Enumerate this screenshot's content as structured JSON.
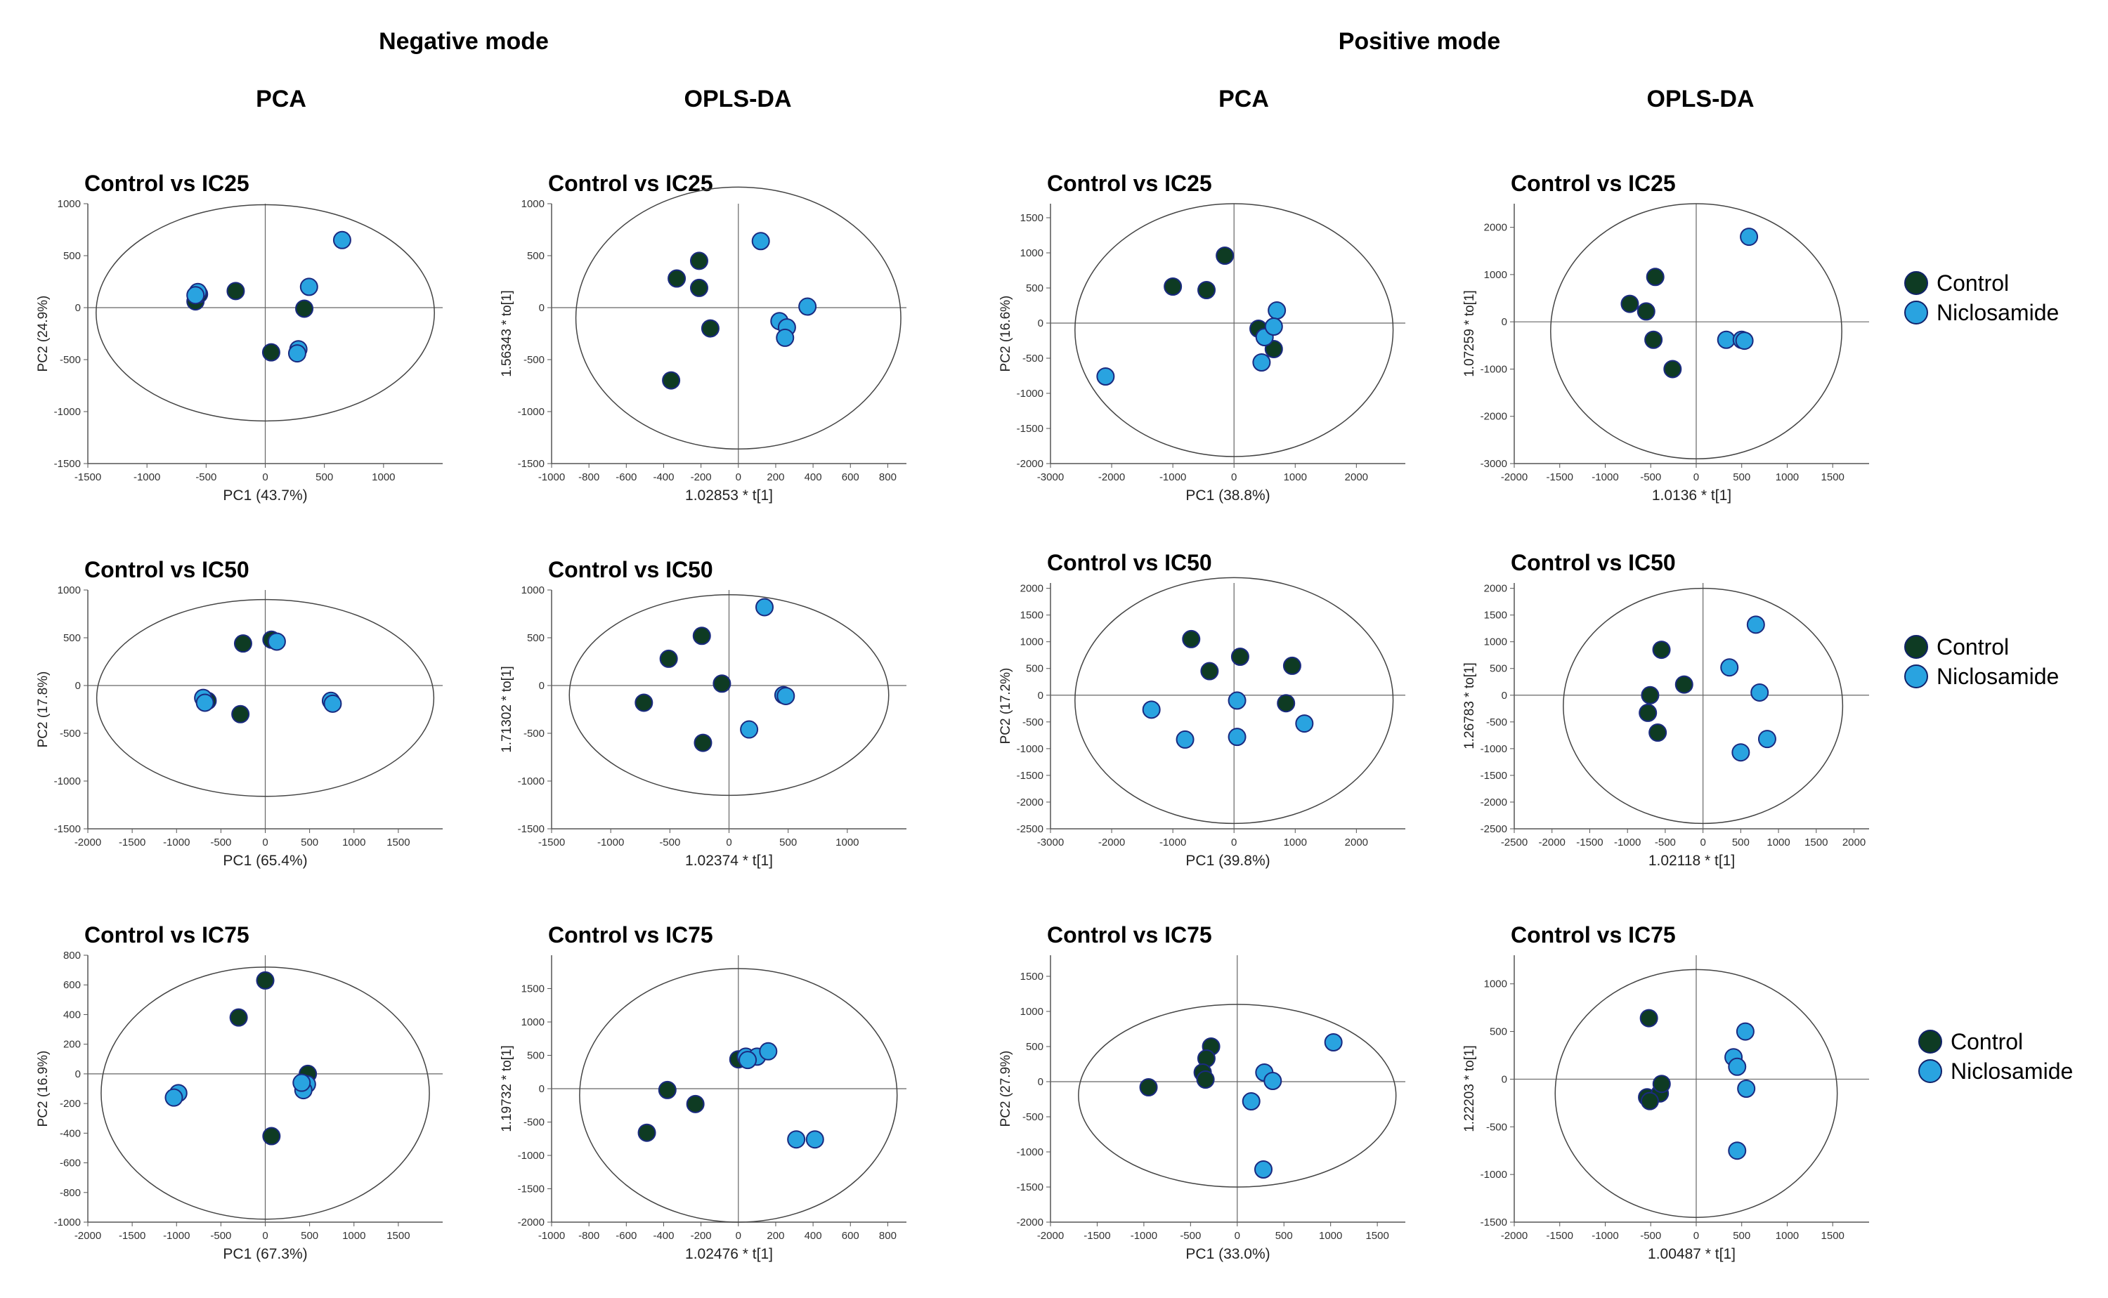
{
  "headers": {
    "negative": "Negative mode",
    "positive": "Positive mode"
  },
  "columns": {
    "pca": "PCA",
    "oplsda": "OPLS-DA"
  },
  "colors": {
    "control": "#0e3b23",
    "niclosamide": "#29a3e0",
    "marker_edge": "#1a2a80"
  },
  "legend": [
    {
      "label": "Control",
      "color": "#0e3b23"
    },
    {
      "label": "Niclosamide",
      "color": "#29a3e0"
    }
  ],
  "chart_data": [
    {
      "id": "neg-pca-ic25",
      "type": "scatter",
      "title": "Control vs IC25",
      "xlabel": "PC1 (43.7%)",
      "ylabel": "PC2 (24.9%)",
      "xlim": [
        -1500,
        1500
      ],
      "ylim": [
        -1500,
        1000
      ],
      "xticks": [
        -1500,
        -1000,
        -500,
        0,
        500,
        1000
      ],
      "yticks": [
        -1500,
        -1000,
        -500,
        0,
        500,
        1000
      ],
      "ellipse": {
        "cx": 0,
        "cy": -50,
        "rx": 1430,
        "ry": 1040
      },
      "series": [
        {
          "name": "Control",
          "points": [
            [
              -590,
              60
            ],
            [
              -560,
              130
            ],
            [
              -250,
              160
            ],
            [
              330,
              -10
            ],
            [
              50,
              -430
            ]
          ]
        },
        {
          "name": "Niclosamide",
          "points": [
            [
              -570,
              150
            ],
            [
              -590,
              120
            ],
            [
              650,
              650
            ],
            [
              370,
              200
            ],
            [
              280,
              -400
            ],
            [
              270,
              -440
            ]
          ]
        }
      ]
    },
    {
      "id": "neg-opls-ic25",
      "type": "scatter",
      "title": "Control vs IC25",
      "xlabel": "1.02853 * t[1]",
      "ylabel": "1.56343 * to[1]",
      "xlim": [
        -1000,
        900
      ],
      "ylim": [
        -1500,
        1000
      ],
      "xticks": [
        -1000,
        -800,
        -600,
        -400,
        -200,
        0,
        200,
        400,
        600,
        800
      ],
      "yticks": [
        -1500,
        -1000,
        -500,
        0,
        500,
        1000
      ],
      "ellipse": {
        "cx": 0,
        "cy": -100,
        "rx": 870,
        "ry": 1260
      },
      "series": [
        {
          "name": "Control",
          "points": [
            [
              -330,
              280
            ],
            [
              -210,
              450
            ],
            [
              -210,
              190
            ],
            [
              -150,
              -200
            ],
            [
              -360,
              -700
            ]
          ]
        },
        {
          "name": "Niclosamide",
          "points": [
            [
              120,
              640
            ],
            [
              370,
              10
            ],
            [
              220,
              -130
            ],
            [
              260,
              -190
            ],
            [
              250,
              -290
            ]
          ]
        }
      ]
    },
    {
      "id": "pos-pca-ic25",
      "type": "scatter",
      "title": "Control vs IC25",
      "xlabel": "PC1 (38.8%)",
      "ylabel": "PC2 (16.6%)",
      "xlim": [
        -3000,
        2800
      ],
      "ylim": [
        -2000,
        1700
      ],
      "xticks": [
        -3000,
        -2000,
        -1000,
        0,
        1000,
        2000
      ],
      "yticks": [
        -2000,
        -1500,
        -1000,
        -500,
        0,
        500,
        1000,
        1500
      ],
      "ellipse": {
        "cx": 0,
        "cy": -100,
        "rx": 2600,
        "ry": 1800
      },
      "series": [
        {
          "name": "Control",
          "points": [
            [
              -1000,
              520
            ],
            [
              -450,
              470
            ],
            [
              -150,
              960
            ],
            [
              400,
              -80
            ],
            [
              650,
              -370
            ]
          ]
        },
        {
          "name": "Niclosamide",
          "points": [
            [
              -2100,
              -760
            ],
            [
              500,
              -200
            ],
            [
              700,
              180
            ],
            [
              650,
              -50
            ],
            [
              450,
              -560
            ]
          ]
        }
      ]
    },
    {
      "id": "pos-opls-ic25",
      "type": "scatter",
      "title": "Control vs IC25",
      "xlabel": "1.0136 * t[1]",
      "ylabel": "1.07259 * to[1]",
      "xlim": [
        -2000,
        1900
      ],
      "ylim": [
        -3000,
        2500
      ],
      "xticks": [
        -2000,
        -1500,
        -1000,
        -500,
        0,
        500,
        1000,
        1500
      ],
      "yticks": [
        -3000,
        -2000,
        -1000,
        0,
        1000,
        2000
      ],
      "ellipse": {
        "cx": 0,
        "cy": -200,
        "rx": 1600,
        "ry": 2700
      },
      "series": [
        {
          "name": "Control",
          "points": [
            [
              -450,
              950
            ],
            [
              -730,
              380
            ],
            [
              -550,
              220
            ],
            [
              -470,
              -380
            ],
            [
              -260,
              -1000
            ]
          ]
        },
        {
          "name": "Niclosamide",
          "points": [
            [
              580,
              1800
            ],
            [
              330,
              -380
            ],
            [
              500,
              -380
            ],
            [
              530,
              -400
            ]
          ]
        }
      ]
    },
    {
      "id": "neg-pca-ic50",
      "type": "scatter",
      "title": "Control vs IC50",
      "xlabel": "PC1 (65.4%)",
      "ylabel": "PC2 (17.8%)",
      "xlim": [
        -2000,
        2000
      ],
      "ylim": [
        -1500,
        1000
      ],
      "xticks": [
        -2000,
        -1500,
        -1000,
        -500,
        0,
        500,
        1000,
        1500
      ],
      "yticks": [
        -1500,
        -1000,
        -500,
        0,
        500,
        1000
      ],
      "ellipse": {
        "cx": 0,
        "cy": -130,
        "rx": 1900,
        "ry": 1030
      },
      "series": [
        {
          "name": "Control",
          "points": [
            [
              -250,
              440
            ],
            [
              -650,
              -160
            ],
            [
              -280,
              -300
            ],
            [
              70,
              480
            ]
          ]
        },
        {
          "name": "Niclosamide",
          "points": [
            [
              -700,
              -130
            ],
            [
              -680,
              -180
            ],
            [
              130,
              460
            ],
            [
              740,
              -160
            ],
            [
              760,
              -190
            ]
          ]
        }
      ]
    },
    {
      "id": "neg-opls-ic50",
      "type": "scatter",
      "title": "Control vs IC50",
      "xlabel": "1.02374 * t[1]",
      "ylabel": "1.71302 * to[1]",
      "xlim": [
        -1500,
        1500
      ],
      "ylim": [
        -1500,
        1000
      ],
      "xticks": [
        -1500,
        -1000,
        -500,
        0,
        500,
        1000
      ],
      "yticks": [
        -1500,
        -1000,
        -500,
        0,
        500,
        1000
      ],
      "ellipse": {
        "cx": 0,
        "cy": -100,
        "rx": 1350,
        "ry": 1050
      },
      "series": [
        {
          "name": "Control",
          "points": [
            [
              -230,
              520
            ],
            [
              -510,
              280
            ],
            [
              -60,
              20
            ],
            [
              -720,
              -180
            ],
            [
              -220,
              -600
            ]
          ]
        },
        {
          "name": "Niclosamide",
          "points": [
            [
              300,
              820
            ],
            [
              460,
              -100
            ],
            [
              480,
              -110
            ],
            [
              170,
              -460
            ]
          ]
        }
      ]
    },
    {
      "id": "pos-pca-ic50",
      "type": "scatter",
      "title": "Control vs IC50",
      "xlabel": "PC1 (39.8%)",
      "ylabel": "PC2 (17.2%)",
      "xlim": [
        -3000,
        2800
      ],
      "ylim": [
        -2500,
        2100
      ],
      "xticks": [
        -3000,
        -2000,
        -1000,
        0,
        1000,
        2000
      ],
      "yticks": [
        -2500,
        -2000,
        -1500,
        -1000,
        -500,
        0,
        500,
        1000,
        1500,
        2000
      ],
      "ellipse": {
        "cx": 0,
        "cy": -100,
        "rx": 2600,
        "ry": 2300
      },
      "series": [
        {
          "name": "Control",
          "points": [
            [
              -700,
              1050
            ],
            [
              -400,
              450
            ],
            [
              100,
              720
            ],
            [
              950,
              550
            ],
            [
              850,
              -150
            ]
          ]
        },
        {
          "name": "Niclosamide",
          "points": [
            [
              -1350,
              -270
            ],
            [
              -800,
              -830
            ],
            [
              50,
              -100
            ],
            [
              50,
              -780
            ],
            [
              1150,
              -530
            ]
          ]
        }
      ]
    },
    {
      "id": "pos-opls-ic50",
      "type": "scatter",
      "title": "Control vs IC50",
      "xlabel": "1.02118 * t[1]",
      "ylabel": "1.26783 * to[1]",
      "xlim": [
        -2500,
        2200
      ],
      "ylim": [
        -2500,
        2100
      ],
      "xticks": [
        -2500,
        -2000,
        -1500,
        -1000,
        -500,
        0,
        500,
        1000,
        1500,
        2000
      ],
      "yticks": [
        -2500,
        -2000,
        -1500,
        -1000,
        -500,
        0,
        500,
        1000,
        1500,
        2000
      ],
      "ellipse": {
        "cx": 0,
        "cy": -200,
        "rx": 1850,
        "ry": 2200
      },
      "series": [
        {
          "name": "Control",
          "points": [
            [
              -550,
              850
            ],
            [
              -700,
              0
            ],
            [
              -730,
              -330
            ],
            [
              -600,
              -700
            ],
            [
              -250,
              200
            ]
          ]
        },
        {
          "name": "Niclosamide",
          "points": [
            [
              700,
              1320
            ],
            [
              350,
              520
            ],
            [
              750,
              50
            ],
            [
              850,
              -820
            ],
            [
              500,
              -1070
            ]
          ]
        }
      ]
    },
    {
      "id": "neg-pca-ic75",
      "type": "scatter",
      "title": "Control vs IC75",
      "xlabel": "PC1 (67.3%)",
      "ylabel": "PC2 (16.9%)",
      "xlim": [
        -2000,
        2000
      ],
      "ylim": [
        -1000,
        800
      ],
      "xticks": [
        -2000,
        -1500,
        -1000,
        -500,
        0,
        500,
        1000,
        1500
      ],
      "yticks": [
        -1000,
        -800,
        -600,
        -400,
        -200,
        0,
        200,
        400,
        600,
        800
      ],
      "ellipse": {
        "cx": 0,
        "cy": -130,
        "rx": 1850,
        "ry": 850
      },
      "series": [
        {
          "name": "Control",
          "points": [
            [
              -300,
              380
            ],
            [
              0,
              630
            ],
            [
              480,
              0
            ],
            [
              70,
              -420
            ]
          ]
        },
        {
          "name": "Niclosamide",
          "points": [
            [
              -980,
              -130
            ],
            [
              -1030,
              -160
            ],
            [
              470,
              -70
            ],
            [
              430,
              -110
            ],
            [
              410,
              -60
            ]
          ]
        }
      ]
    },
    {
      "id": "neg-opls-ic75",
      "type": "scatter",
      "title": "Control vs IC75",
      "xlabel": "1.02476 * t[1]",
      "ylabel": "1.19732 * to[1]",
      "xlim": [
        -1000,
        900
      ],
      "ylim": [
        -2000,
        2000
      ],
      "xticks": [
        -1000,
        -800,
        -600,
        -400,
        -200,
        0,
        200,
        400,
        600,
        800
      ],
      "yticks": [
        -2000,
        -1500,
        -1000,
        -500,
        0,
        500,
        1000,
        1500
      ],
      "ellipse": {
        "cx": 0,
        "cy": -100,
        "rx": 850,
        "ry": 1900
      },
      "series": [
        {
          "name": "Control",
          "points": [
            [
              -380,
              -20
            ],
            [
              -230,
              -230
            ],
            [
              -490,
              -660
            ],
            [
              0,
              440
            ]
          ]
        },
        {
          "name": "Niclosamide",
          "points": [
            [
              40,
              480
            ],
            [
              100,
              480
            ],
            [
              160,
              560
            ],
            [
              50,
              430
            ],
            [
              310,
              -760
            ],
            [
              410,
              -760
            ]
          ]
        }
      ]
    },
    {
      "id": "pos-pca-ic75",
      "type": "scatter",
      "title": "Control vs IC75",
      "xlabel": "PC1 (33.0%)",
      "ylabel": "PC2 (27.9%)",
      "xlim": [
        -2000,
        1800
      ],
      "ylim": [
        -2000,
        1800
      ],
      "xticks": [
        -2000,
        -1500,
        -1000,
        -500,
        0,
        500,
        1000,
        1500
      ],
      "yticks": [
        -2000,
        -1500,
        -1000,
        -500,
        0,
        500,
        1000,
        1500
      ],
      "ellipse": {
        "cx": 0,
        "cy": -200,
        "rx": 1700,
        "ry": 1300
      },
      "series": [
        {
          "name": "Control",
          "points": [
            [
              -950,
              -80
            ],
            [
              -280,
              500
            ],
            [
              -330,
              330
            ],
            [
              -370,
              130
            ],
            [
              -340,
              30
            ]
          ]
        },
        {
          "name": "Niclosamide",
          "points": [
            [
              290,
              130
            ],
            [
              380,
              10
            ],
            [
              150,
              -280
            ],
            [
              280,
              -1250
            ],
            [
              1030,
              560
            ]
          ]
        }
      ]
    },
    {
      "id": "pos-opls-ic75",
      "type": "scatter",
      "title": "Control vs IC75",
      "xlabel": "1.00487 * t[1]",
      "ylabel": "1.22203 * to[1]",
      "xlim": [
        -2000,
        1900
      ],
      "ylim": [
        -1500,
        1300
      ],
      "xticks": [
        -2000,
        -1500,
        -1000,
        -500,
        0,
        500,
        1000,
        1500
      ],
      "yticks": [
        -1500,
        -1000,
        -500,
        0,
        500,
        1000
      ],
      "ellipse": {
        "cx": 0,
        "cy": -150,
        "rx": 1550,
        "ry": 1300
      },
      "series": [
        {
          "name": "Control",
          "points": [
            [
              -520,
              640
            ],
            [
              -540,
              -190
            ],
            [
              -400,
              -150
            ],
            [
              -380,
              -50
            ],
            [
              -510,
              -230
            ]
          ]
        },
        {
          "name": "Niclosamide",
          "points": [
            [
              540,
              500
            ],
            [
              410,
              230
            ],
            [
              450,
              130
            ],
            [
              550,
              -100
            ],
            [
              450,
              -750
            ]
          ]
        }
      ]
    }
  ]
}
